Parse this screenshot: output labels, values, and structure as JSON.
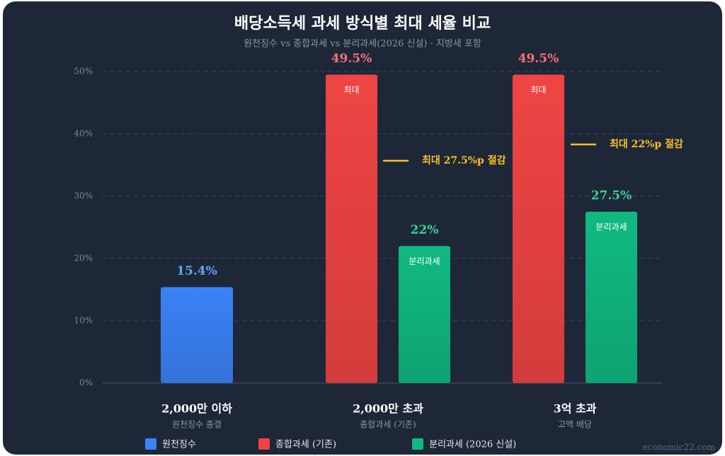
{
  "chart_data": {
    "type": "bar",
    "title": "배당소득세 과세 방식별 최대 세율 비교",
    "subtitle": "원천징수 vs 종합과세 vs 분리과세(2026 신설) · 지방세 포함",
    "categories": [
      "2,000만 이하",
      "2,000만 초과",
      "3억 초과"
    ],
    "category_sublabels": [
      "원천징수 종결",
      "종합과세 (기존)",
      "고액 배당"
    ],
    "series": [
      {
        "name": "원천징수",
        "color": "#3b82f6",
        "label_color": "#60a5fa",
        "values": [
          15.4,
          null,
          null
        ],
        "value_labels": [
          "15.4%",
          null,
          null
        ],
        "inner_labels": [
          null,
          null,
          null
        ]
      },
      {
        "name": "종합과세 (기존)",
        "color": "#ef4444",
        "label_color": "#f87171",
        "values": [
          null,
          49.5,
          49.5
        ],
        "value_labels": [
          null,
          "49.5%",
          "49.5%"
        ],
        "inner_labels": [
          null,
          "최대",
          "최대"
        ]
      },
      {
        "name": "분리과세 (2026 신설)",
        "color": "#10b981",
        "label_color": "#34d399",
        "values": [
          null,
          22,
          27.5
        ],
        "value_labels": [
          null,
          "22%",
          "27.5%"
        ],
        "inner_labels": [
          null,
          "분리과세",
          "분리과세"
        ]
      }
    ],
    "annotations": [
      "최대 27.5%p 절감",
      "최대 22%p 절감"
    ],
    "ylim": [
      0,
      50
    ],
    "yticks": [
      {
        "value": 0,
        "label": "0%"
      },
      {
        "value": 10,
        "label": "10%"
      },
      {
        "value": 20,
        "label": "20%"
      },
      {
        "value": 30,
        "label": "30%"
      },
      {
        "value": 40,
        "label": "40%"
      },
      {
        "value": 50,
        "label": "50%"
      }
    ],
    "grid": true,
    "legend": "bottom",
    "watermark": "economic22.com"
  }
}
